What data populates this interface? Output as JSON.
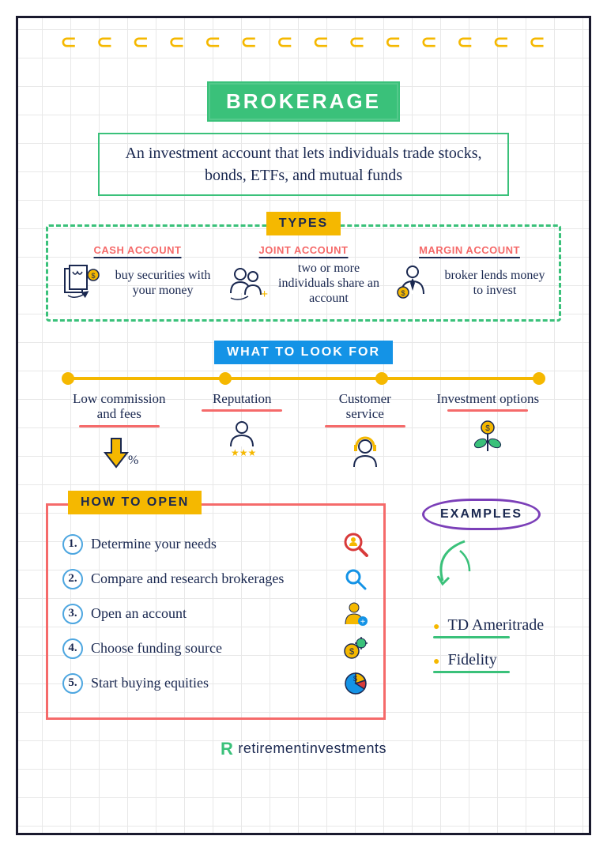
{
  "colors": {
    "green": "#3ac17a",
    "yellow": "#f5b800",
    "blue": "#1493e6",
    "red": "#f56a6a",
    "navy": "#1a2850",
    "purple": "#7b3fb8",
    "lightblue": "#4da6e0"
  },
  "spiral_count": 14,
  "title": "BROKERAGE",
  "definition": "An investment account that lets individuals trade stocks, bonds, ETFs, and mutual funds",
  "types": {
    "badge": "TYPES",
    "items": [
      {
        "title": "CASH ACCOUNT",
        "desc": "buy securities with your money",
        "icon": "docs-coin"
      },
      {
        "title": "JOINT ACCOUNT",
        "desc": "two or more individuals share an account",
        "icon": "two-people"
      },
      {
        "title": "MARGIN ACCOUNT",
        "desc": "broker lends money to invest",
        "icon": "person-tie-coin"
      }
    ]
  },
  "lookfor": {
    "badge": "WHAT TO LOOK FOR",
    "items": [
      {
        "label": "Low commission and fees",
        "icon": "down-arrow-percent"
      },
      {
        "label": "Reputation",
        "icon": "person-stars"
      },
      {
        "label": "Customer\nservice",
        "icon": "headset-person"
      },
      {
        "label": "Investment options",
        "icon": "coin-plant"
      }
    ]
  },
  "howto": {
    "badge": "HOW TO OPEN",
    "steps": [
      {
        "n": "1.",
        "text": "Determine your needs",
        "icon": "magnify-person"
      },
      {
        "n": "2.",
        "text": "Compare and research brokerages",
        "icon": "magnify"
      },
      {
        "n": "3.",
        "text": "Open an account",
        "icon": "person-plus"
      },
      {
        "n": "4.",
        "text": "Choose funding source",
        "icon": "coin-gear"
      },
      {
        "n": "5.",
        "text": "Start buying equities",
        "icon": "pie-chart"
      }
    ]
  },
  "examples": {
    "badge": "EXAMPLES",
    "items": [
      "TD Ameritrade",
      "Fidelity"
    ]
  },
  "footer": {
    "logo": "R",
    "text": "retirementinvestments"
  }
}
